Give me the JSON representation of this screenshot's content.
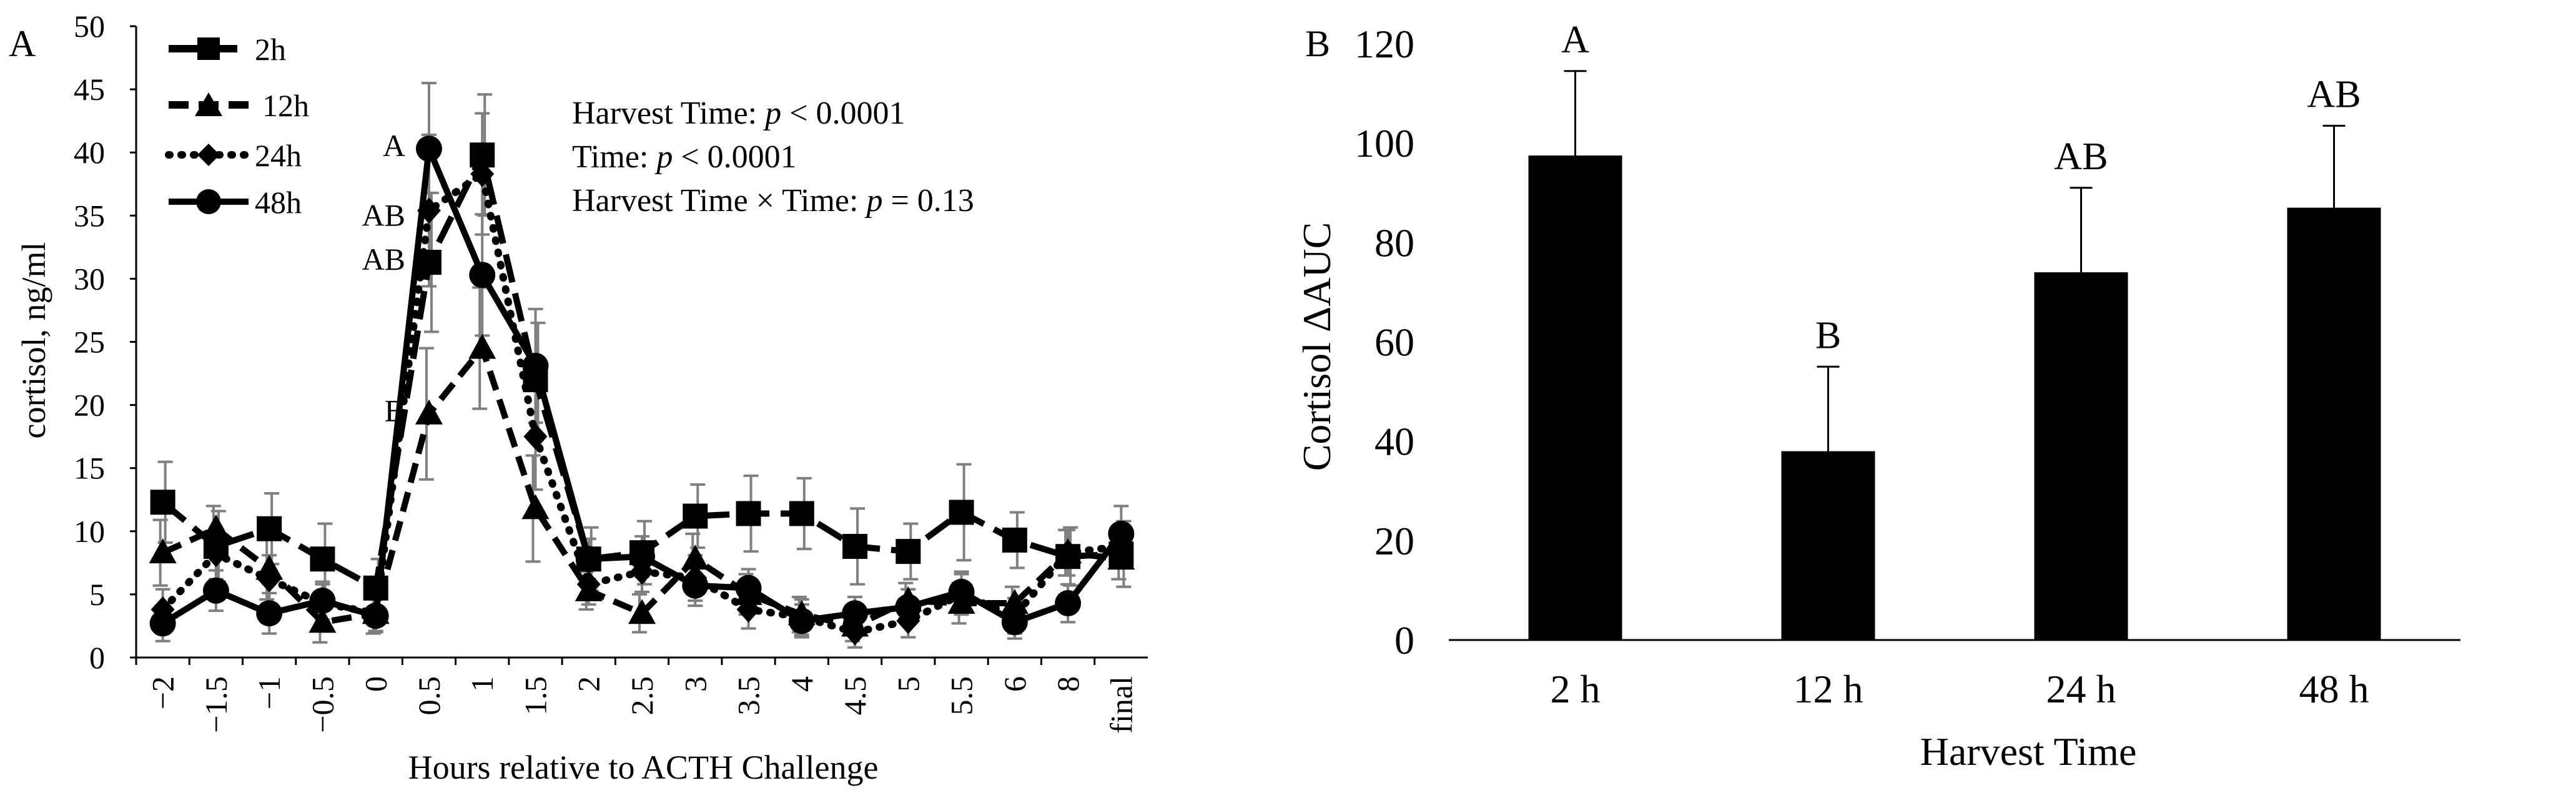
{
  "chart_data": [
    {
      "panel": "A",
      "type": "line",
      "xlabel": "Hours relative to ACTH Challenge",
      "ylabel": "cortisol, ng/ml",
      "ylim": [
        0,
        50
      ],
      "yticks": [
        0,
        5,
        10,
        15,
        20,
        25,
        30,
        35,
        40,
        45,
        50
      ],
      "categories": [
        "−2",
        "−1.5",
        "−1",
        "−0.5",
        "0",
        "0.5",
        "1",
        "1.5",
        "2",
        "2.5",
        "3",
        "3.5",
        "4",
        "4.5",
        "5",
        "5.5",
        "6",
        "8",
        "final"
      ],
      "series": [
        {
          "name": "2h",
          "marker": "square",
          "dash": "long-dash",
          "values": [
            12.3,
            8.8,
            10.2,
            7.8,
            5.5,
            31.3,
            39.8,
            22.0,
            7.8,
            8.3,
            11.2,
            11.4,
            11.4,
            8.8,
            8.4,
            11.5,
            9.3,
            8.0,
            8.2
          ],
          "errors": [
            3.2,
            2.8,
            2.8,
            2.8,
            2.3,
            5.5,
            4.8,
            4.5,
            2.5,
            2.5,
            2.5,
            3.0,
            2.8,
            3.0,
            2.2,
            3.8,
            2.2,
            2.3,
            2.6
          ]
        },
        {
          "name": "12h",
          "marker": "triangle",
          "dash": "dash",
          "values": [
            8.3,
            10.2,
            7.0,
            2.8,
            3.5,
            19.3,
            24.5,
            11.8,
            5.3,
            3.5,
            7.8,
            5.0,
            3.4,
            2.5,
            4.5,
            4.3,
            4.3,
            8.3,
            7.8
          ],
          "errors": [
            2.6,
            1.8,
            2.4,
            1.6,
            1.6,
            5.2,
            4.8,
            4.2,
            1.5,
            1.5,
            2.0,
            1.6,
            1.4,
            1.2,
            1.4,
            1.6,
            1.3,
            1.8,
            1.6
          ]
        },
        {
          "name": "24h",
          "marker": "diamond",
          "dash": "dot",
          "values": [
            3.8,
            8.2,
            6.2,
            4.3,
            3.5,
            35.4,
            38.3,
            17.5,
            5.8,
            6.8,
            6.3,
            3.8,
            3.2,
            2.0,
            2.9,
            5.0,
            3.3,
            8.3,
            8.8
          ],
          "errors": [
            1.6,
            2.0,
            1.9,
            1.5,
            1.4,
            6.0,
            4.8,
            4.2,
            1.6,
            1.6,
            1.8,
            1.5,
            1.4,
            1.2,
            1.3,
            1.6,
            1.4,
            1.8,
            1.7
          ]
        },
        {
          "name": "48h",
          "marker": "circle",
          "dash": "solid",
          "values": [
            2.7,
            5.3,
            3.5,
            4.5,
            3.3,
            40.3,
            30.3,
            23.1,
            7.8,
            8.0,
            5.7,
            5.5,
            2.9,
            3.5,
            4.0,
            5.2,
            2.8,
            4.3,
            9.8
          ],
          "errors": [
            1.4,
            1.6,
            1.6,
            1.5,
            1.3,
            5.2,
            4.8,
            4.5,
            1.6,
            1.6,
            1.6,
            1.5,
            1.3,
            1.3,
            1.4,
            1.6,
            1.3,
            1.5,
            2.2
          ]
        }
      ],
      "annotations": [
        {
          "text": "A",
          "category": "0.5",
          "y": 40.5
        },
        {
          "text": "AB",
          "category": "0.5",
          "y": 35.0
        },
        {
          "text": "AB",
          "category": "0.5",
          "y": 31.5
        },
        {
          "text": "B",
          "category": "0.5",
          "y": 19.5
        }
      ],
      "stats": {
        "line1_label": "Harvest Time: ",
        "line1_p": "p",
        "line1_value": " < 0.0001",
        "line2_label": "Time: ",
        "line2_p": "p",
        "line2_value": " < 0.0001",
        "line3_label": "Harvest Time × Time: ",
        "line3_p": "p",
        "line3_value": " = 0.13"
      },
      "legend_position": "top-left"
    },
    {
      "panel": "B",
      "type": "bar",
      "xlabel": "Harvest Time",
      "ylabel": "Cortisol ΔAUC",
      "ylim": [
        0,
        120
      ],
      "yticks": [
        0,
        20,
        40,
        60,
        80,
        100,
        120
      ],
      "categories": [
        "2 h",
        "12 h",
        "24 h",
        "48 h"
      ],
      "values": [
        97.5,
        38.0,
        74.0,
        87.0
      ],
      "errors": [
        17.0,
        17.0,
        17.0,
        16.5
      ],
      "letters": [
        "A",
        "B",
        "AB",
        "AB"
      ],
      "color": "#000000"
    }
  ]
}
